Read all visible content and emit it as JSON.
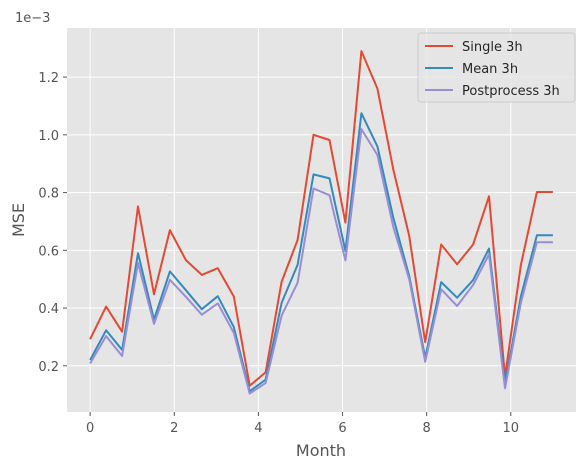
{
  "chart_data": {
    "type": "line",
    "title": "",
    "xlabel": "Month",
    "ylabel": "MSE",
    "scale_label": "1e−3",
    "xlim": [
      -0.55,
      11.55
    ],
    "ylim": [
      0.04,
      1.37
    ],
    "xticks": [
      0,
      2,
      4,
      6,
      8,
      10
    ],
    "xtick_labels": [
      "0",
      "2",
      "4",
      "6",
      "8",
      "10"
    ],
    "yticks": [
      0.2,
      0.4,
      0.6,
      0.8,
      1.0,
      1.2
    ],
    "ytick_labels": [
      "0.2",
      "0.4",
      "0.6",
      "0.8",
      "1.0",
      "1.2"
    ],
    "grid": true,
    "legend_position": "top-right",
    "x": [
      0.0,
      0.379,
      0.759,
      1.138,
      1.517,
      1.897,
      2.276,
      2.655,
      3.034,
      3.414,
      3.793,
      4.172,
      4.552,
      4.931,
      5.31,
      5.69,
      6.069,
      6.448,
      6.828,
      7.207,
      7.586,
      7.966,
      8.345,
      8.724,
      9.103,
      9.483,
      9.862,
      10.241,
      10.621,
      11.0
    ],
    "series": [
      {
        "name": "Single 3h",
        "color": "#e24a33",
        "values": [
          0.292,
          0.405,
          0.318,
          0.752,
          0.448,
          0.67,
          0.566,
          0.515,
          0.538,
          0.44,
          0.131,
          0.177,
          0.491,
          0.636,
          1.0,
          0.982,
          0.696,
          1.29,
          1.16,
          0.88,
          0.65,
          0.282,
          0.62,
          0.552,
          0.62,
          0.787,
          0.162,
          0.55,
          0.802,
          0.802
        ]
      },
      {
        "name": "Mean 3h",
        "color": "#348abd",
        "values": [
          0.22,
          0.323,
          0.255,
          0.59,
          0.36,
          0.527,
          0.462,
          0.396,
          0.441,
          0.334,
          0.112,
          0.152,
          0.418,
          0.55,
          0.863,
          0.849,
          0.598,
          1.075,
          0.96,
          0.713,
          0.511,
          0.228,
          0.49,
          0.436,
          0.497,
          0.606,
          0.136,
          0.441,
          0.652,
          0.652
        ]
      },
      {
        "name": "Postprocess 3h",
        "color": "#988ed5",
        "values": [
          0.208,
          0.303,
          0.234,
          0.556,
          0.345,
          0.498,
          0.439,
          0.377,
          0.416,
          0.314,
          0.104,
          0.14,
          0.374,
          0.488,
          0.814,
          0.791,
          0.565,
          1.02,
          0.93,
          0.681,
          0.5,
          0.214,
          0.465,
          0.407,
          0.48,
          0.586,
          0.122,
          0.419,
          0.628,
          0.628
        ]
      }
    ]
  },
  "style": {
    "plot_background": "#e5e5e5",
    "grid_color": "#ffffff",
    "text_color": "#555555"
  }
}
